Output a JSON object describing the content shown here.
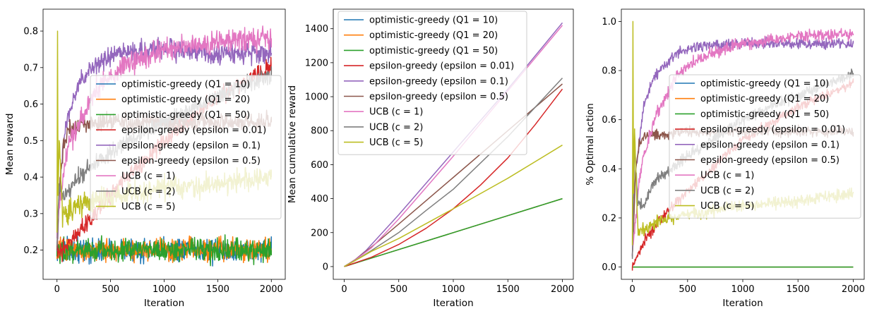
{
  "colors": {
    "optimistic-greedy (Q1 = 10)": "#1f77b4",
    "optimistic-greedy (Q1 = 20)": "#ff7f0e",
    "optimistic-greedy (Q1 = 50)": "#2ca02c",
    "epsilon-greedy (epsilon = 0.01)": "#d62728",
    "epsilon-greedy (epsilon = 0.1)": "#9467bd",
    "epsilon-greedy (epsilon = 0.5)": "#8c564b",
    "UCB (c = 1)": "#e377c2",
    "UCB (c = 2)": "#7f7f7f",
    "UCB (c = 5)": "#bcbd22"
  },
  "chart_data": [
    {
      "type": "line",
      "xlabel": "Iteration",
      "ylabel": "Mean reward",
      "xlim": [
        -130,
        2130
      ],
      "ylim": [
        0.12,
        0.86
      ],
      "xticks": [
        0,
        500,
        1000,
        1500,
        2000
      ],
      "xtick_labels": [
        "0",
        "500",
        "1000",
        "1500",
        "2000"
      ],
      "yticks": [
        0.2,
        0.3,
        0.4,
        0.5,
        0.6,
        0.7,
        0.8
      ],
      "ytick_labels": [
        "0.2",
        "0.3",
        "0.4",
        "0.5",
        "0.6",
        "0.7",
        "0.8"
      ],
      "grid": false,
      "legend": "center-right",
      "noisy": true,
      "series": [
        {
          "name": "optimistic-greedy (Q1 = 10)",
          "x": [
            0,
            20,
            100,
            500,
            1000,
            1500,
            2000
          ],
          "y": [
            0.2,
            0.2,
            0.2,
            0.2,
            0.2,
            0.2,
            0.2
          ],
          "noise": 0.015
        },
        {
          "name": "optimistic-greedy (Q1 = 20)",
          "x": [
            0,
            20,
            100,
            500,
            1000,
            1500,
            2000
          ],
          "y": [
            0.2,
            0.2,
            0.2,
            0.2,
            0.2,
            0.2,
            0.2
          ],
          "noise": 0.015
        },
        {
          "name": "optimistic-greedy (Q1 = 50)",
          "x": [
            0,
            20,
            100,
            500,
            1000,
            1500,
            2000
          ],
          "y": [
            0.2,
            0.2,
            0.2,
            0.2,
            0.2,
            0.2,
            0.2
          ],
          "noise": 0.015
        },
        {
          "name": "epsilon-greedy (epsilon = 0.01)",
          "x": [
            0,
            50,
            100,
            300,
            600,
            1000,
            1500,
            2000
          ],
          "y": [
            0.2,
            0.2,
            0.22,
            0.28,
            0.38,
            0.5,
            0.62,
            0.7
          ],
          "noise": 0.012
        },
        {
          "name": "epsilon-greedy (epsilon = 0.1)",
          "x": [
            0,
            30,
            60,
            100,
            200,
            400,
            600,
            1000,
            1500,
            2000
          ],
          "y": [
            0.2,
            0.4,
            0.48,
            0.57,
            0.65,
            0.72,
            0.74,
            0.75,
            0.74,
            0.74
          ],
          "noise": 0.014
        },
        {
          "name": "epsilon-greedy (epsilon = 0.5)",
          "x": [
            0,
            30,
            60,
            100,
            200,
            500,
            1000,
            1500,
            2000
          ],
          "y": [
            0.2,
            0.4,
            0.48,
            0.53,
            0.54,
            0.55,
            0.55,
            0.55,
            0.55
          ],
          "noise": 0.012
        },
        {
          "name": "UCB (c = 1)",
          "x": [
            0,
            30,
            60,
            100,
            200,
            400,
            600,
            1000,
            1500,
            2000
          ],
          "y": [
            0.25,
            0.35,
            0.4,
            0.48,
            0.55,
            0.65,
            0.7,
            0.75,
            0.77,
            0.78
          ],
          "noise": 0.016
        },
        {
          "name": "UCB (c = 2)",
          "x": [
            0,
            20,
            50,
            100,
            200,
            500,
            1000,
            1500,
            2000
          ],
          "y": [
            0.22,
            0.38,
            0.34,
            0.36,
            0.4,
            0.47,
            0.55,
            0.62,
            0.68
          ],
          "noise": 0.012
        },
        {
          "name": "UCB (c = 5)",
          "x": [
            0,
            5,
            10,
            20,
            50,
            100,
            300,
            600,
            1000,
            1500,
            2000
          ],
          "y": [
            0.25,
            0.8,
            0.35,
            0.5,
            0.3,
            0.3,
            0.33,
            0.35,
            0.37,
            0.38,
            0.4
          ],
          "noise": 0.016
        }
      ]
    },
    {
      "type": "line",
      "xlabel": "Iteration",
      "ylabel": "Mean cumulative reward",
      "xlim": [
        -100,
        2100
      ],
      "ylim": [
        -75,
        1515
      ],
      "xticks": [
        0,
        500,
        1000,
        1500,
        2000
      ],
      "xtick_labels": [
        "0",
        "500",
        "1000",
        "1500",
        "2000"
      ],
      "yticks": [
        0,
        200,
        400,
        600,
        800,
        1000,
        1200,
        1400
      ],
      "ytick_labels": [
        "0",
        "200",
        "400",
        "600",
        "800",
        "1000",
        "1200",
        "1400"
      ],
      "grid": false,
      "legend": "upper-left",
      "noisy": false,
      "series": [
        {
          "name": "optimistic-greedy (Q1 = 10)",
          "x": [
            0,
            500,
            1000,
            1500,
            2000
          ],
          "y": [
            0,
            100,
            200,
            300,
            400
          ]
        },
        {
          "name": "optimistic-greedy (Q1 = 20)",
          "x": [
            0,
            500,
            1000,
            1500,
            2000
          ],
          "y": [
            0,
            100,
            200,
            300,
            400
          ]
        },
        {
          "name": "optimistic-greedy (Q1 = 50)",
          "x": [
            0,
            500,
            1000,
            1500,
            2000
          ],
          "y": [
            0,
            100,
            200,
            300,
            400
          ]
        },
        {
          "name": "epsilon-greedy (epsilon = 0.01)",
          "x": [
            0,
            250,
            500,
            750,
            1000,
            1250,
            1500,
            1750,
            2000
          ],
          "y": [
            0,
            55,
            130,
            225,
            340,
            480,
            640,
            835,
            1045
          ]
        },
        {
          "name": "epsilon-greedy (epsilon = 0.1)",
          "x": [
            0,
            100,
            200,
            500,
            1000,
            1500,
            2000
          ],
          "y": [
            0,
            40,
            95,
            305,
            675,
            1045,
            1435
          ]
        },
        {
          "name": "epsilon-greedy (epsilon = 0.5)",
          "x": [
            0,
            100,
            250,
            500,
            1000,
            1500,
            2000
          ],
          "y": [
            0,
            40,
            115,
            250,
            525,
            800,
            1075
          ]
        },
        {
          "name": "UCB (c = 1)",
          "x": [
            0,
            100,
            250,
            500,
            1000,
            1500,
            2000
          ],
          "y": [
            0,
            38,
            110,
            280,
            650,
            1035,
            1420
          ]
        },
        {
          "name": "UCB (c = 2)",
          "x": [
            0,
            100,
            250,
            500,
            750,
            1000,
            1500,
            2000
          ],
          "y": [
            0,
            35,
            95,
            200,
            330,
            455,
            765,
            1110
          ]
        },
        {
          "name": "UCB (c = 5)",
          "x": [
            0,
            100,
            250,
            500,
            1000,
            1500,
            2000
          ],
          "y": [
            0,
            35,
            90,
            165,
            340,
            520,
            715
          ]
        }
      ]
    },
    {
      "type": "line",
      "xlabel": "Iteration",
      "ylabel": "% Optimal action",
      "xlim": [
        -100,
        2100
      ],
      "ylim": [
        -0.05,
        1.05
      ],
      "xticks": [
        0,
        500,
        1000,
        1500,
        2000
      ],
      "xtick_labels": [
        "0",
        "500",
        "1000",
        "1500",
        "2000"
      ],
      "yticks": [
        0.0,
        0.2,
        0.4,
        0.6,
        0.8,
        1.0
      ],
      "ytick_labels": [
        "0.0",
        "0.2",
        "0.4",
        "0.6",
        "0.8",
        "1.0"
      ],
      "grid": false,
      "legend": "center-right",
      "noisy": true,
      "series": [
        {
          "name": "optimistic-greedy (Q1 = 10)",
          "x": [
            0,
            2000
          ],
          "y": [
            0.0,
            0.0
          ],
          "noise": 0
        },
        {
          "name": "optimistic-greedy (Q1 = 20)",
          "x": [
            0,
            2000
          ],
          "y": [
            0.0,
            0.0
          ],
          "noise": 0
        },
        {
          "name": "optimistic-greedy (Q1 = 50)",
          "x": [
            0,
            2000
          ],
          "y": [
            0.0,
            0.0
          ],
          "noise": 0
        },
        {
          "name": "epsilon-greedy (epsilon = 0.01)",
          "x": [
            0,
            50,
            100,
            300,
            600,
            1000,
            1500,
            2000
          ],
          "y": [
            0.0,
            0.05,
            0.1,
            0.22,
            0.35,
            0.52,
            0.65,
            0.75
          ],
          "noise": 0.01
        },
        {
          "name": "epsilon-greedy (epsilon = 0.1)",
          "x": [
            0,
            30,
            60,
            100,
            200,
            400,
            600,
            1000,
            1500,
            2000
          ],
          "y": [
            0.05,
            0.4,
            0.5,
            0.65,
            0.78,
            0.87,
            0.9,
            0.91,
            0.91,
            0.91
          ],
          "noise": 0.01
        },
        {
          "name": "epsilon-greedy (epsilon = 0.5)",
          "x": [
            0,
            30,
            60,
            100,
            200,
            500,
            1000,
            1500,
            2000
          ],
          "y": [
            0.05,
            0.4,
            0.5,
            0.53,
            0.54,
            0.55,
            0.55,
            0.55,
            0.55
          ],
          "noise": 0.01
        },
        {
          "name": "UCB (c = 1)",
          "x": [
            0,
            30,
            60,
            100,
            200,
            400,
            600,
            1000,
            1500,
            2000
          ],
          "y": [
            0.05,
            0.2,
            0.35,
            0.45,
            0.6,
            0.78,
            0.85,
            0.91,
            0.94,
            0.95
          ],
          "noise": 0.012
        },
        {
          "name": "UCB (c = 2)",
          "x": [
            0,
            20,
            50,
            100,
            200,
            500,
            1000,
            1500,
            2000
          ],
          "y": [
            0.05,
            0.5,
            0.25,
            0.25,
            0.35,
            0.45,
            0.6,
            0.7,
            0.79
          ],
          "noise": 0.012
        },
        {
          "name": "UCB (c = 5)",
          "x": [
            0,
            5,
            10,
            20,
            50,
            100,
            300,
            600,
            1000,
            1500,
            2000
          ],
          "y": [
            0.1,
            1.0,
            0.3,
            0.55,
            0.15,
            0.15,
            0.2,
            0.22,
            0.25,
            0.27,
            0.3
          ],
          "noise": 0.012
        }
      ]
    }
  ]
}
